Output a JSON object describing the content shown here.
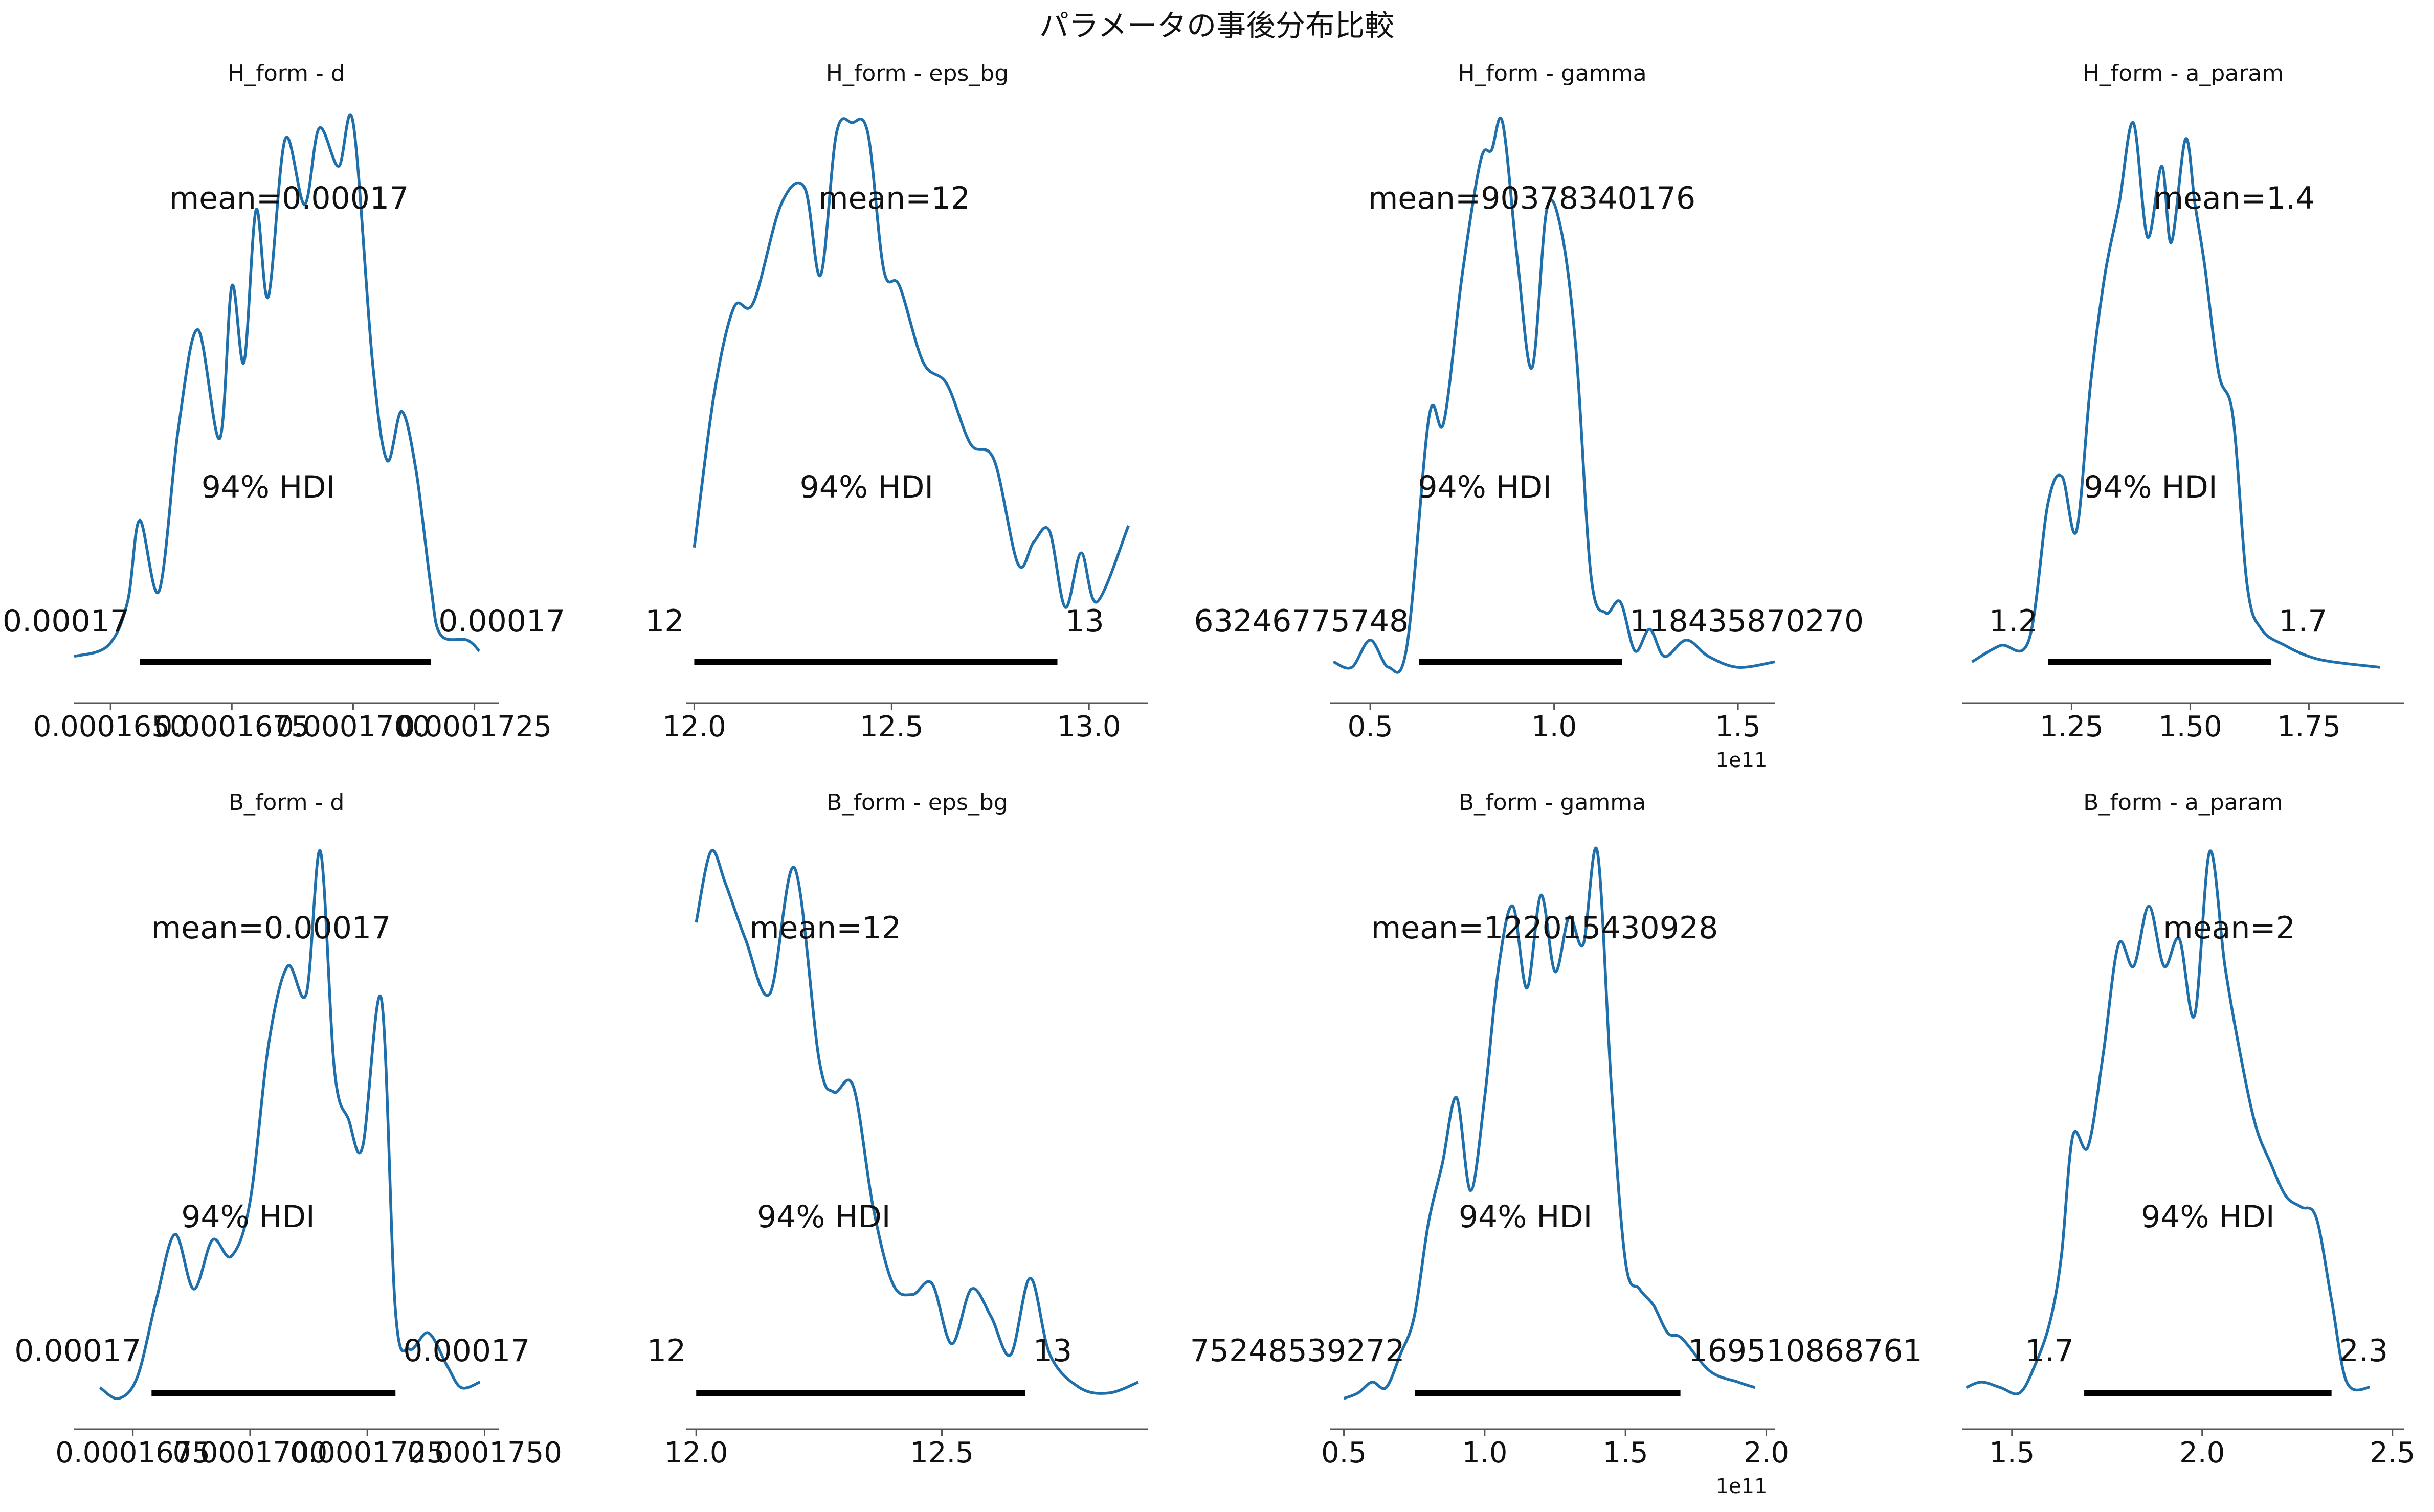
{
  "suptitle": "パラメータの事後分布比較",
  "chart_data": [
    {
      "type": "area",
      "title": "H_form - d",
      "ylabel": "",
      "xlim": [
        0.00016425,
        0.000173
      ],
      "ylim": [
        0,
        1
      ],
      "ticks": [
        0.000165,
        0.0001675,
        0.00017,
        0.0001725
      ],
      "tick_labels": [
        "0.0001650",
        "0.0001675",
        "0.0001700",
        "0.0001725"
      ],
      "offset_label": "",
      "mean_label": "mean=0.00017",
      "hdi_label": "94% HDI",
      "hdi": [
        0.0001656,
        0.0001716
      ],
      "hdi_low_label": "0.00017",
      "hdi_high_label": "0.00017",
      "series": [
        {
          "x": [
            0.00016425,
            0.00016495,
            0.00016535,
            0.0001656,
            0.000166,
            0.0001664,
            0.0001668,
            0.00016725,
            0.0001675,
            0.00016775,
            0.000168,
            0.00016825,
            0.0001686,
            0.000169,
            0.0001693,
            0.0001697,
            0.00017,
            0.0001704,
            0.0001707,
            0.000171,
            0.0001713,
            0.0001716,
            0.0001718,
            0.00017235,
            0.0001726
          ],
          "y": [
            0.02,
            0.04,
            0.12,
            0.27,
            0.14,
            0.44,
            0.62,
            0.42,
            0.7,
            0.56,
            0.84,
            0.68,
            0.97,
            0.85,
            0.99,
            0.92,
            1.0,
            0.56,
            0.38,
            0.47,
            0.36,
            0.15,
            0.06,
            0.05,
            0.03
          ]
        }
      ]
    },
    {
      "type": "area",
      "title": "H_form - eps_bg",
      "ylabel": "",
      "xlim": [
        11.98,
        13.15
      ],
      "ylim": [
        0,
        1
      ],
      "ticks": [
        12.0,
        12.5,
        13.0
      ],
      "tick_labels": [
        "12.0",
        "12.5",
        "13.0"
      ],
      "offset_label": "",
      "mean_label": "mean=12",
      "hdi_label": "94% HDI",
      "hdi": [
        12.0,
        12.92
      ],
      "hdi_low_label": "12",
      "hdi_high_label": "13",
      "series": [
        {
          "x": [
            12.0,
            12.05,
            12.1,
            12.15,
            12.22,
            12.28,
            12.32,
            12.36,
            12.4,
            12.44,
            12.48,
            12.52,
            12.58,
            12.64,
            12.7,
            12.76,
            12.82,
            12.86,
            12.9,
            12.94,
            12.98,
            13.02,
            13.1
          ],
          "y": [
            0.22,
            0.5,
            0.66,
            0.67,
            0.85,
            0.88,
            0.72,
            0.98,
            1.0,
            0.98,
            0.73,
            0.7,
            0.56,
            0.52,
            0.41,
            0.38,
            0.19,
            0.23,
            0.25,
            0.11,
            0.21,
            0.12,
            0.26
          ]
        }
      ]
    },
    {
      "type": "area",
      "title": "H_form - gamma",
      "ylabel": "",
      "xlim": [
        39000000000.0,
        160000000000.0
      ],
      "ylim": [
        0,
        1
      ],
      "ticks": [
        50000000000.0,
        100000000000.0,
        150000000000.0
      ],
      "tick_labels": [
        "0.5",
        "1.0",
        "1.5"
      ],
      "offset_label": "1e11",
      "mean_label": "mean=90378340176",
      "hdi_label": "94% HDI",
      "hdi": [
        63246775748,
        118435870270
      ],
      "hdi_low_label": "63246775748",
      "hdi_high_label": "118435870270",
      "series": [
        {
          "x": [
            40000000000.0,
            45000000000.0,
            50000000000.0,
            55000000000.0,
            60000000000.0,
            66000000000.0,
            70000000000.0,
            75000000000.0,
            80000000000.0,
            83000000000.0,
            86000000000.0,
            90000000000.0,
            94000000000.0,
            98000000000.0,
            102000000000.0,
            106000000000.0,
            110000000000.0,
            114000000000.0,
            118000000000.0,
            122000000000.0,
            126000000000.0,
            130000000000.0,
            136000000000.0,
            142000000000.0,
            150000000000.0,
            160000000000.0
          ],
          "y": [
            0.01,
            0.0,
            0.05,
            0.0,
            0.04,
            0.46,
            0.45,
            0.72,
            0.93,
            0.95,
            1.0,
            0.75,
            0.55,
            0.84,
            0.8,
            0.58,
            0.17,
            0.1,
            0.12,
            0.03,
            0.07,
            0.02,
            0.05,
            0.02,
            0.0,
            0.01
          ]
        }
      ]
    },
    {
      "type": "area",
      "title": "H_form - a_param",
      "ylabel": "",
      "xlim": [
        1.02,
        1.95
      ],
      "ylim": [
        0,
        1
      ],
      "ticks": [
        1.25,
        1.5,
        1.75
      ],
      "tick_labels": [
        "1.25",
        "1.50",
        "1.75"
      ],
      "offset_label": "",
      "mean_label": "mean=1.4",
      "hdi_label": "94% HDI",
      "hdi": [
        1.2,
        1.67
      ],
      "hdi_low_label": "1.2",
      "hdi_high_label": "1.7",
      "series": [
        {
          "x": [
            1.04,
            1.1,
            1.16,
            1.2,
            1.23,
            1.26,
            1.29,
            1.32,
            1.35,
            1.38,
            1.41,
            1.44,
            1.46,
            1.49,
            1.51,
            1.53,
            1.56,
            1.59,
            1.62,
            1.65,
            1.7,
            1.75,
            1.8,
            1.9
          ],
          "y": [
            0.01,
            0.04,
            0.05,
            0.3,
            0.35,
            0.25,
            0.52,
            0.72,
            0.85,
            1.0,
            0.79,
            0.92,
            0.78,
            0.97,
            0.85,
            0.74,
            0.54,
            0.46,
            0.15,
            0.07,
            0.04,
            0.02,
            0.01,
            0.0
          ]
        }
      ]
    },
    {
      "type": "area",
      "title": "B_form - d",
      "ylabel": "",
      "xlim": [
        0.00016625,
        0.0001753
      ],
      "ylim": [
        0,
        1
      ],
      "ticks": [
        0.0001675,
        0.00017,
        0.0001725,
        0.000175
      ],
      "tick_labels": [
        "0.0001675",
        "0.0001700",
        "0.0001725",
        "0.0001750"
      ],
      "offset_label": "",
      "mean_label": "mean=0.00017",
      "hdi_label": "94% HDI",
      "hdi": [
        0.0001679,
        0.0001731
      ],
      "hdi_low_label": "0.00017",
      "hdi_high_label": "0.00017",
      "series": [
        {
          "x": [
            0.0001668,
            0.0001672,
            0.0001676,
            0.000168,
            0.0001684,
            0.0001688,
            0.0001692,
            0.0001696,
            0.00017,
            0.0001704,
            0.0001708,
            0.0001712,
            0.0001715,
            0.0001718,
            0.0001721,
            0.0001724,
            0.0001728,
            0.0001731,
            0.0001734,
            0.0001738,
            0.0001742,
            0.0001745,
            0.0001749
          ],
          "y": [
            0.02,
            0.0,
            0.04,
            0.18,
            0.3,
            0.2,
            0.29,
            0.26,
            0.36,
            0.65,
            0.79,
            0.74,
            1.0,
            0.6,
            0.51,
            0.46,
            0.73,
            0.16,
            0.09,
            0.12,
            0.06,
            0.02,
            0.03
          ]
        }
      ]
    },
    {
      "type": "area",
      "title": "B_form - eps_bg",
      "ylabel": "",
      "xlim": [
        11.98,
        12.92
      ],
      "ylim": [
        0,
        1
      ],
      "ticks": [
        12.0,
        12.5
      ],
      "tick_labels": [
        "12.0",
        "12.5"
      ],
      "offset_label": "",
      "mean_label": "mean=12",
      "hdi_label": "94% HDI",
      "hdi": [
        12.0,
        12.67
      ],
      "hdi_low_label": "12",
      "hdi_high_label": "13",
      "series": [
        {
          "x": [
            12.0,
            12.03,
            12.06,
            12.1,
            12.15,
            12.2,
            12.25,
            12.28,
            12.32,
            12.36,
            12.4,
            12.44,
            12.48,
            12.52,
            12.56,
            12.6,
            12.64,
            12.68,
            12.72,
            12.78,
            12.84,
            12.9
          ],
          "y": [
            0.87,
            1.0,
            0.94,
            0.84,
            0.74,
            0.97,
            0.62,
            0.56,
            0.57,
            0.35,
            0.21,
            0.19,
            0.21,
            0.1,
            0.2,
            0.15,
            0.08,
            0.22,
            0.08,
            0.02,
            0.01,
            0.03
          ]
        }
      ]
    },
    {
      "type": "area",
      "title": "B_form - gamma",
      "ylabel": "",
      "xlim": [
        45000000000.0,
        203000000000.0
      ],
      "ylim": [
        0,
        1
      ],
      "ticks": [
        50000000000.0,
        100000000000.0,
        150000000000.0,
        200000000000.0
      ],
      "tick_labels": [
        "0.5",
        "1.0",
        "1.5",
        "2.0"
      ],
      "offset_label": "1e11",
      "mean_label": "mean=122015430928",
      "hdi_label": "94% HDI",
      "hdi": [
        75248539272,
        169510868761
      ],
      "hdi_low_label": "75248539272",
      "hdi_high_label": "169510868761",
      "series": [
        {
          "x": [
            50000000000.0,
            55000000000.0,
            60000000000.0,
            65000000000.0,
            70000000000.0,
            75000000000.0,
            80000000000.0,
            85000000000.0,
            90000000000.0,
            95000000000.0,
            100000000000.0,
            105000000000.0,
            110000000000.0,
            115000000000.0,
            120000000000.0,
            125000000000.0,
            130000000000.0,
            135000000000.0,
            140000000000.0,
            145000000000.0,
            150000000000.0,
            155000000000.0,
            160000000000.0,
            165000000000.0,
            170000000000.0,
            180000000000.0,
            190000000000.0,
            196000000000.0
          ],
          "y": [
            0.0,
            0.01,
            0.03,
            0.02,
            0.08,
            0.15,
            0.32,
            0.43,
            0.55,
            0.38,
            0.55,
            0.79,
            0.9,
            0.75,
            0.92,
            0.78,
            0.88,
            0.83,
            1.0,
            0.57,
            0.25,
            0.2,
            0.17,
            0.12,
            0.11,
            0.05,
            0.03,
            0.02
          ]
        }
      ]
    },
    {
      "type": "area",
      "title": "B_form - a_param",
      "ylabel": "",
      "xlim": [
        1.37,
        2.53
      ],
      "ylim": [
        0,
        1
      ],
      "ticks": [
        1.5,
        2.0,
        2.5
      ],
      "tick_labels": [
        "1.5",
        "2.0",
        "2.5"
      ],
      "offset_label": "",
      "mean_label": "mean=2",
      "hdi_label": "94% HDI",
      "hdi": [
        1.69,
        2.34
      ],
      "hdi_low_label": "1.7",
      "hdi_high_label": "2.3",
      "series": [
        {
          "x": [
            1.38,
            1.42,
            1.47,
            1.52,
            1.56,
            1.6,
            1.63,
            1.66,
            1.7,
            1.74,
            1.78,
            1.82,
            1.86,
            1.9,
            1.94,
            1.98,
            2.02,
            2.06,
            2.1,
            2.14,
            2.18,
            2.22,
            2.26,
            2.3,
            2.34,
            2.38,
            2.44
          ],
          "y": [
            0.02,
            0.03,
            0.02,
            0.01,
            0.06,
            0.14,
            0.26,
            0.48,
            0.46,
            0.63,
            0.83,
            0.79,
            0.9,
            0.79,
            0.84,
            0.7,
            1.0,
            0.79,
            0.63,
            0.5,
            0.43,
            0.37,
            0.35,
            0.33,
            0.18,
            0.03,
            0.02
          ]
        }
      ]
    }
  ]
}
